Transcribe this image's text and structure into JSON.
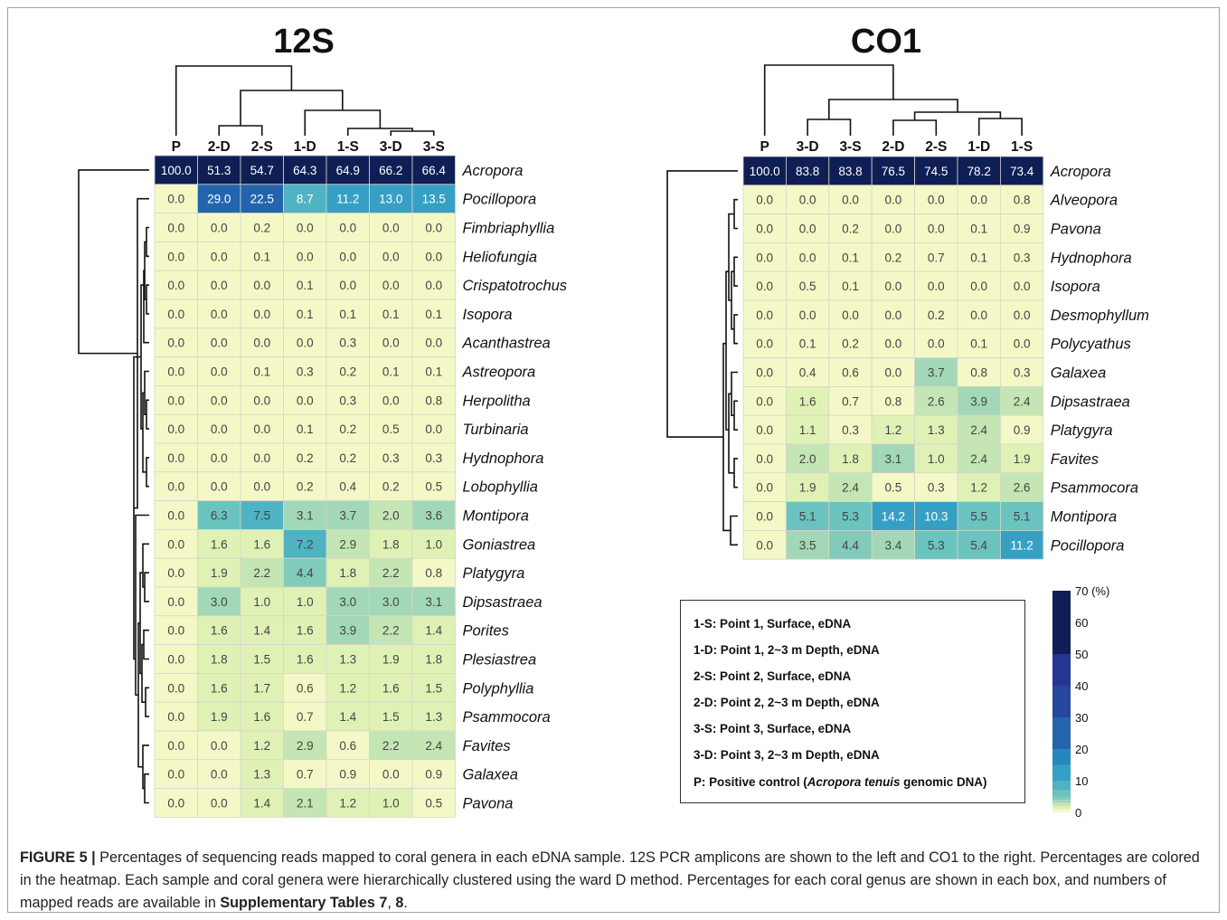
{
  "chart_data": [
    {
      "type": "heatmap",
      "title": "12S",
      "columns": [
        "P",
        "2-D",
        "2-S",
        "1-D",
        "1-S",
        "3-D",
        "3-S"
      ],
      "rows": [
        "Acropora",
        "Pocillopora",
        "Fimbriaphyllia",
        "Heliofungia",
        "Crispatotrochus",
        "Isopora",
        "Acanthastrea",
        "Astreopora",
        "Herpolitha",
        "Turbinaria",
        "Hydnophora",
        "Lobophyllia",
        "Montipora",
        "Goniastrea",
        "Platygyra",
        "Dipsastraea",
        "Porites",
        "Plesiastrea",
        "Polyphyllia",
        "Psammocora",
        "Favites",
        "Galaxea",
        "Pavona"
      ],
      "values": [
        [
          "100.0",
          "51.3",
          "54.7",
          "64.3",
          "64.9",
          "66.2",
          "66.4"
        ],
        [
          "0.0",
          "29.0",
          "22.5",
          "8.7",
          "11.2",
          "13.0",
          "13.5"
        ],
        [
          "0.0",
          "0.0",
          "0.2",
          "0.0",
          "0.0",
          "0.0",
          "0.0"
        ],
        [
          "0.0",
          "0.0",
          "0.1",
          "0.0",
          "0.0",
          "0.0",
          "0.0"
        ],
        [
          "0.0",
          "0.0",
          "0.0",
          "0.1",
          "0.0",
          "0.0",
          "0.0"
        ],
        [
          "0.0",
          "0.0",
          "0.0",
          "0.1",
          "0.1",
          "0.1",
          "0.1"
        ],
        [
          "0.0",
          "0.0",
          "0.0",
          "0.0",
          "0.3",
          "0.0",
          "0.0"
        ],
        [
          "0.0",
          "0.0",
          "0.1",
          "0.3",
          "0.2",
          "0.1",
          "0.1"
        ],
        [
          "0.0",
          "0.0",
          "0.0",
          "0.0",
          "0.3",
          "0.0",
          "0.8"
        ],
        [
          "0.0",
          "0.0",
          "0.0",
          "0.1",
          "0.2",
          "0.5",
          "0.0"
        ],
        [
          "0.0",
          "0.0",
          "0.0",
          "0.2",
          "0.2",
          "0.3",
          "0.3"
        ],
        [
          "0.0",
          "0.0",
          "0.0",
          "0.2",
          "0.4",
          "0.2",
          "0.5"
        ],
        [
          "0.0",
          "6.3",
          "7.5",
          "3.1",
          "3.7",
          "2.0",
          "3.6"
        ],
        [
          "0.0",
          "1.6",
          "1.6",
          "7.2",
          "2.9",
          "1.8",
          "1.0"
        ],
        [
          "0.0",
          "1.9",
          "2.2",
          "4.4",
          "1.8",
          "2.2",
          "0.8"
        ],
        [
          "0.0",
          "3.0",
          "1.0",
          "1.0",
          "3.0",
          "3.0",
          "3.1"
        ],
        [
          "0.0",
          "1.6",
          "1.4",
          "1.6",
          "3.9",
          "2.2",
          "1.4"
        ],
        [
          "0.0",
          "1.8",
          "1.5",
          "1.6",
          "1.3",
          "1.9",
          "1.8"
        ],
        [
          "0.0",
          "1.6",
          "1.7",
          "0.6",
          "1.2",
          "1.6",
          "1.5"
        ],
        [
          "0.0",
          "1.9",
          "1.6",
          "0.7",
          "1.4",
          "1.5",
          "1.3"
        ],
        [
          "0.0",
          "0.0",
          "1.2",
          "2.9",
          "0.6",
          "2.2",
          "2.4"
        ],
        [
          "0.0",
          "0.0",
          "1.3",
          "0.7",
          "0.9",
          "0.0",
          "0.9"
        ],
        [
          "0.0",
          "0.0",
          "1.4",
          "2.1",
          "1.2",
          "1.0",
          "0.5"
        ]
      ]
    },
    {
      "type": "heatmap",
      "title": "CO1",
      "columns": [
        "P",
        "3-D",
        "3-S",
        "2-D",
        "2-S",
        "1-D",
        "1-S"
      ],
      "rows": [
        "Acropora",
        "Alveopora",
        "Pavona",
        "Hydnophora",
        "Isopora",
        "Desmophyllum",
        "Polycyathus",
        "Galaxea",
        "Dipsastraea",
        "Platygyra",
        "Favites",
        "Psammocora",
        "Montipora",
        "Pocillopora"
      ],
      "values": [
        [
          "100.0",
          "83.8",
          "83.8",
          "76.5",
          "74.5",
          "78.2",
          "73.4"
        ],
        [
          "0.0",
          "0.0",
          "0.0",
          "0.0",
          "0.0",
          "0.0",
          "0.8"
        ],
        [
          "0.0",
          "0.0",
          "0.2",
          "0.0",
          "0.0",
          "0.1",
          "0.9"
        ],
        [
          "0.0",
          "0.0",
          "0.1",
          "0.2",
          "0.7",
          "0.1",
          "0.3"
        ],
        [
          "0.0",
          "0.5",
          "0.1",
          "0.0",
          "0.0",
          "0.0",
          "0.0"
        ],
        [
          "0.0",
          "0.0",
          "0.0",
          "0.0",
          "0.2",
          "0.0",
          "0.0"
        ],
        [
          "0.0",
          "0.1",
          "0.2",
          "0.0",
          "0.0",
          "0.1",
          "0.0"
        ],
        [
          "0.0",
          "0.4",
          "0.6",
          "0.0",
          "3.7",
          "0.8",
          "0.3"
        ],
        [
          "0.0",
          "1.6",
          "0.7",
          "0.8",
          "2.6",
          "3.9",
          "2.4"
        ],
        [
          "0.0",
          "1.1",
          "0.3",
          "1.2",
          "1.3",
          "2.4",
          "0.9"
        ],
        [
          "0.0",
          "2.0",
          "1.8",
          "3.1",
          "1.0",
          "2.4",
          "1.9"
        ],
        [
          "0.0",
          "1.9",
          "2.4",
          "0.5",
          "0.3",
          "1.2",
          "2.6"
        ],
        [
          "0.0",
          "5.1",
          "5.3",
          "14.2",
          "10.3",
          "5.5",
          "5.1"
        ],
        [
          "0.0",
          "3.5",
          "4.4",
          "3.4",
          "5.3",
          "5.4",
          "11.2"
        ]
      ]
    }
  ],
  "colorbar": {
    "ticks": [
      "70 (%)",
      "60",
      "50",
      "40",
      "30",
      "20",
      "10",
      "0"
    ],
    "range": [
      0,
      70
    ],
    "bands": [
      {
        "from": 0,
        "to": 1,
        "color": "#f4f8c6"
      },
      {
        "from": 1,
        "to": 2,
        "color": "#e0f1b6"
      },
      {
        "from": 2,
        "to": 3,
        "color": "#c4e6b4"
      },
      {
        "from": 3,
        "to": 4,
        "color": "#a2d8b7"
      },
      {
        "from": 4,
        "to": 5,
        "color": "#82cbbb"
      },
      {
        "from": 5,
        "to": 7,
        "color": "#6bc3bf"
      },
      {
        "from": 7,
        "to": 10,
        "color": "#4fb3c3"
      },
      {
        "from": 10,
        "to": 15,
        "color": "#36a0c4"
      },
      {
        "from": 15,
        "to": 20,
        "color": "#2588bd"
      },
      {
        "from": 20,
        "to": 30,
        "color": "#2364ad"
      },
      {
        "from": 30,
        "to": 40,
        "color": "#26479e"
      },
      {
        "from": 40,
        "to": 50,
        "color": "#243594"
      },
      {
        "from": 50,
        "to": 70,
        "color": "#0f1f55"
      }
    ]
  },
  "legend": {
    "lines": [
      "1-S: Point 1, Surface, eDNA",
      "1-D: Point 1, 2~3 m Depth, eDNA",
      "2-S: Point 2, Surface, eDNA",
      "2-D: Point 2, 2~3 m Depth, eDNA",
      "3-S: Point 3, Surface, eDNA",
      "3-D: Point 3, 2~3 m Depth, eDNA"
    ],
    "positive_prefix": "P: Positive control (",
    "positive_species": "Acropora tenuis",
    "positive_suffix": " genomic DNA)"
  },
  "caption": {
    "label": "FIGURE 5 |",
    "text": " Percentages of sequencing reads mapped to coral genera in each eDNA sample. 12S PCR amplicons are shown to the left and CO1 to the right. Percentages are colored in the heatmap. Each sample and coral genera were hierarchically clustered using the ward D method. Percentages for each coral genus are shown in each box, and numbers of mapped reads are available in ",
    "ref": "Supplementary Tables 7",
    "sep": ", ",
    "ref2": "8",
    "end": "."
  }
}
